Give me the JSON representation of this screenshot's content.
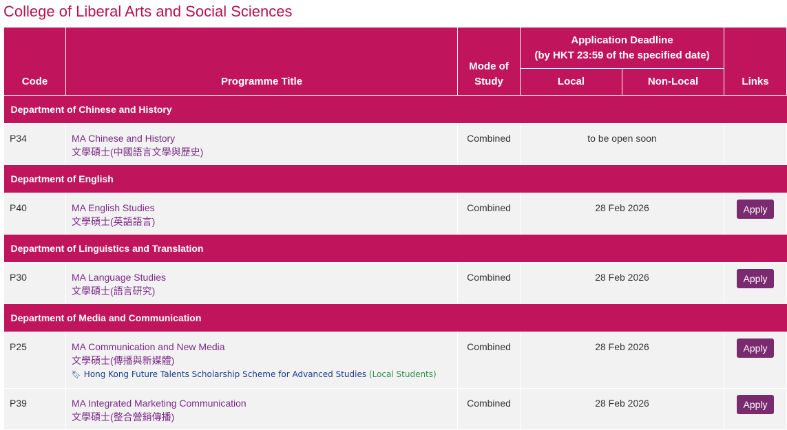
{
  "page": {
    "title": "College of Liberal Arts and Social Sciences"
  },
  "table": {
    "headers": {
      "code": "Code",
      "programme_title": "Programme Title",
      "mode_of_study_line1": "Mode of",
      "mode_of_study_line2": "Study",
      "deadline_line1": "Application Deadline",
      "deadline_line2": "(by HKT 23:59 of the specified date)",
      "local": "Local",
      "non_local": "Non-Local",
      "links": "Links"
    },
    "departments": [
      {
        "name": "Department of Chinese and History",
        "programmes": [
          {
            "code": "P34",
            "title_en": "MA Chinese and History",
            "title_zh": "文學碩士(中國語言文學與歷史)",
            "mode": "Combined",
            "deadline": "to be open soon",
            "link": ""
          }
        ]
      },
      {
        "name": "Department of English",
        "programmes": [
          {
            "code": "P40",
            "title_en": "MA English Studies",
            "title_zh": "文學碩士(英語語言)",
            "mode": "Combined",
            "deadline": "28 Feb 2026",
            "link": "Apply"
          }
        ]
      },
      {
        "name": "Department of Linguistics and Translation",
        "programmes": [
          {
            "code": "P30",
            "title_en": "MA Language Studies",
            "title_zh": "文學碩士(語言研究)",
            "mode": "Combined",
            "deadline": "28 Feb 2026",
            "link": "Apply"
          }
        ]
      },
      {
        "name": "Department of Media and Communication",
        "programmes": [
          {
            "code": "P25",
            "title_en": "MA Communication and New Media",
            "title_zh": "文學碩士(傳播與新媒體)",
            "scholarship_main": "Hong Kong Future Talents Scholarship Scheme for Advanced Studies",
            "scholarship_local": "(Local Students)",
            "scholarship_icon": "bookmark-icon",
            "mode": "Combined",
            "deadline": "28 Feb 2026",
            "link": "Apply"
          },
          {
            "code": "P39",
            "title_en": "MA Integrated Marketing Communication",
            "title_zh": "文學碩士(整合營銷傳播)",
            "mode": "Combined",
            "deadline": "28 Feb 2026",
            "link": "Apply"
          }
        ]
      }
    ]
  },
  "colors": {
    "header_bg": "#c0155c",
    "title_color": "#b5124f",
    "link_color": "#7b2a86",
    "button_bg": "#7a2a6e",
    "row_bg": "#f2f2f2"
  }
}
